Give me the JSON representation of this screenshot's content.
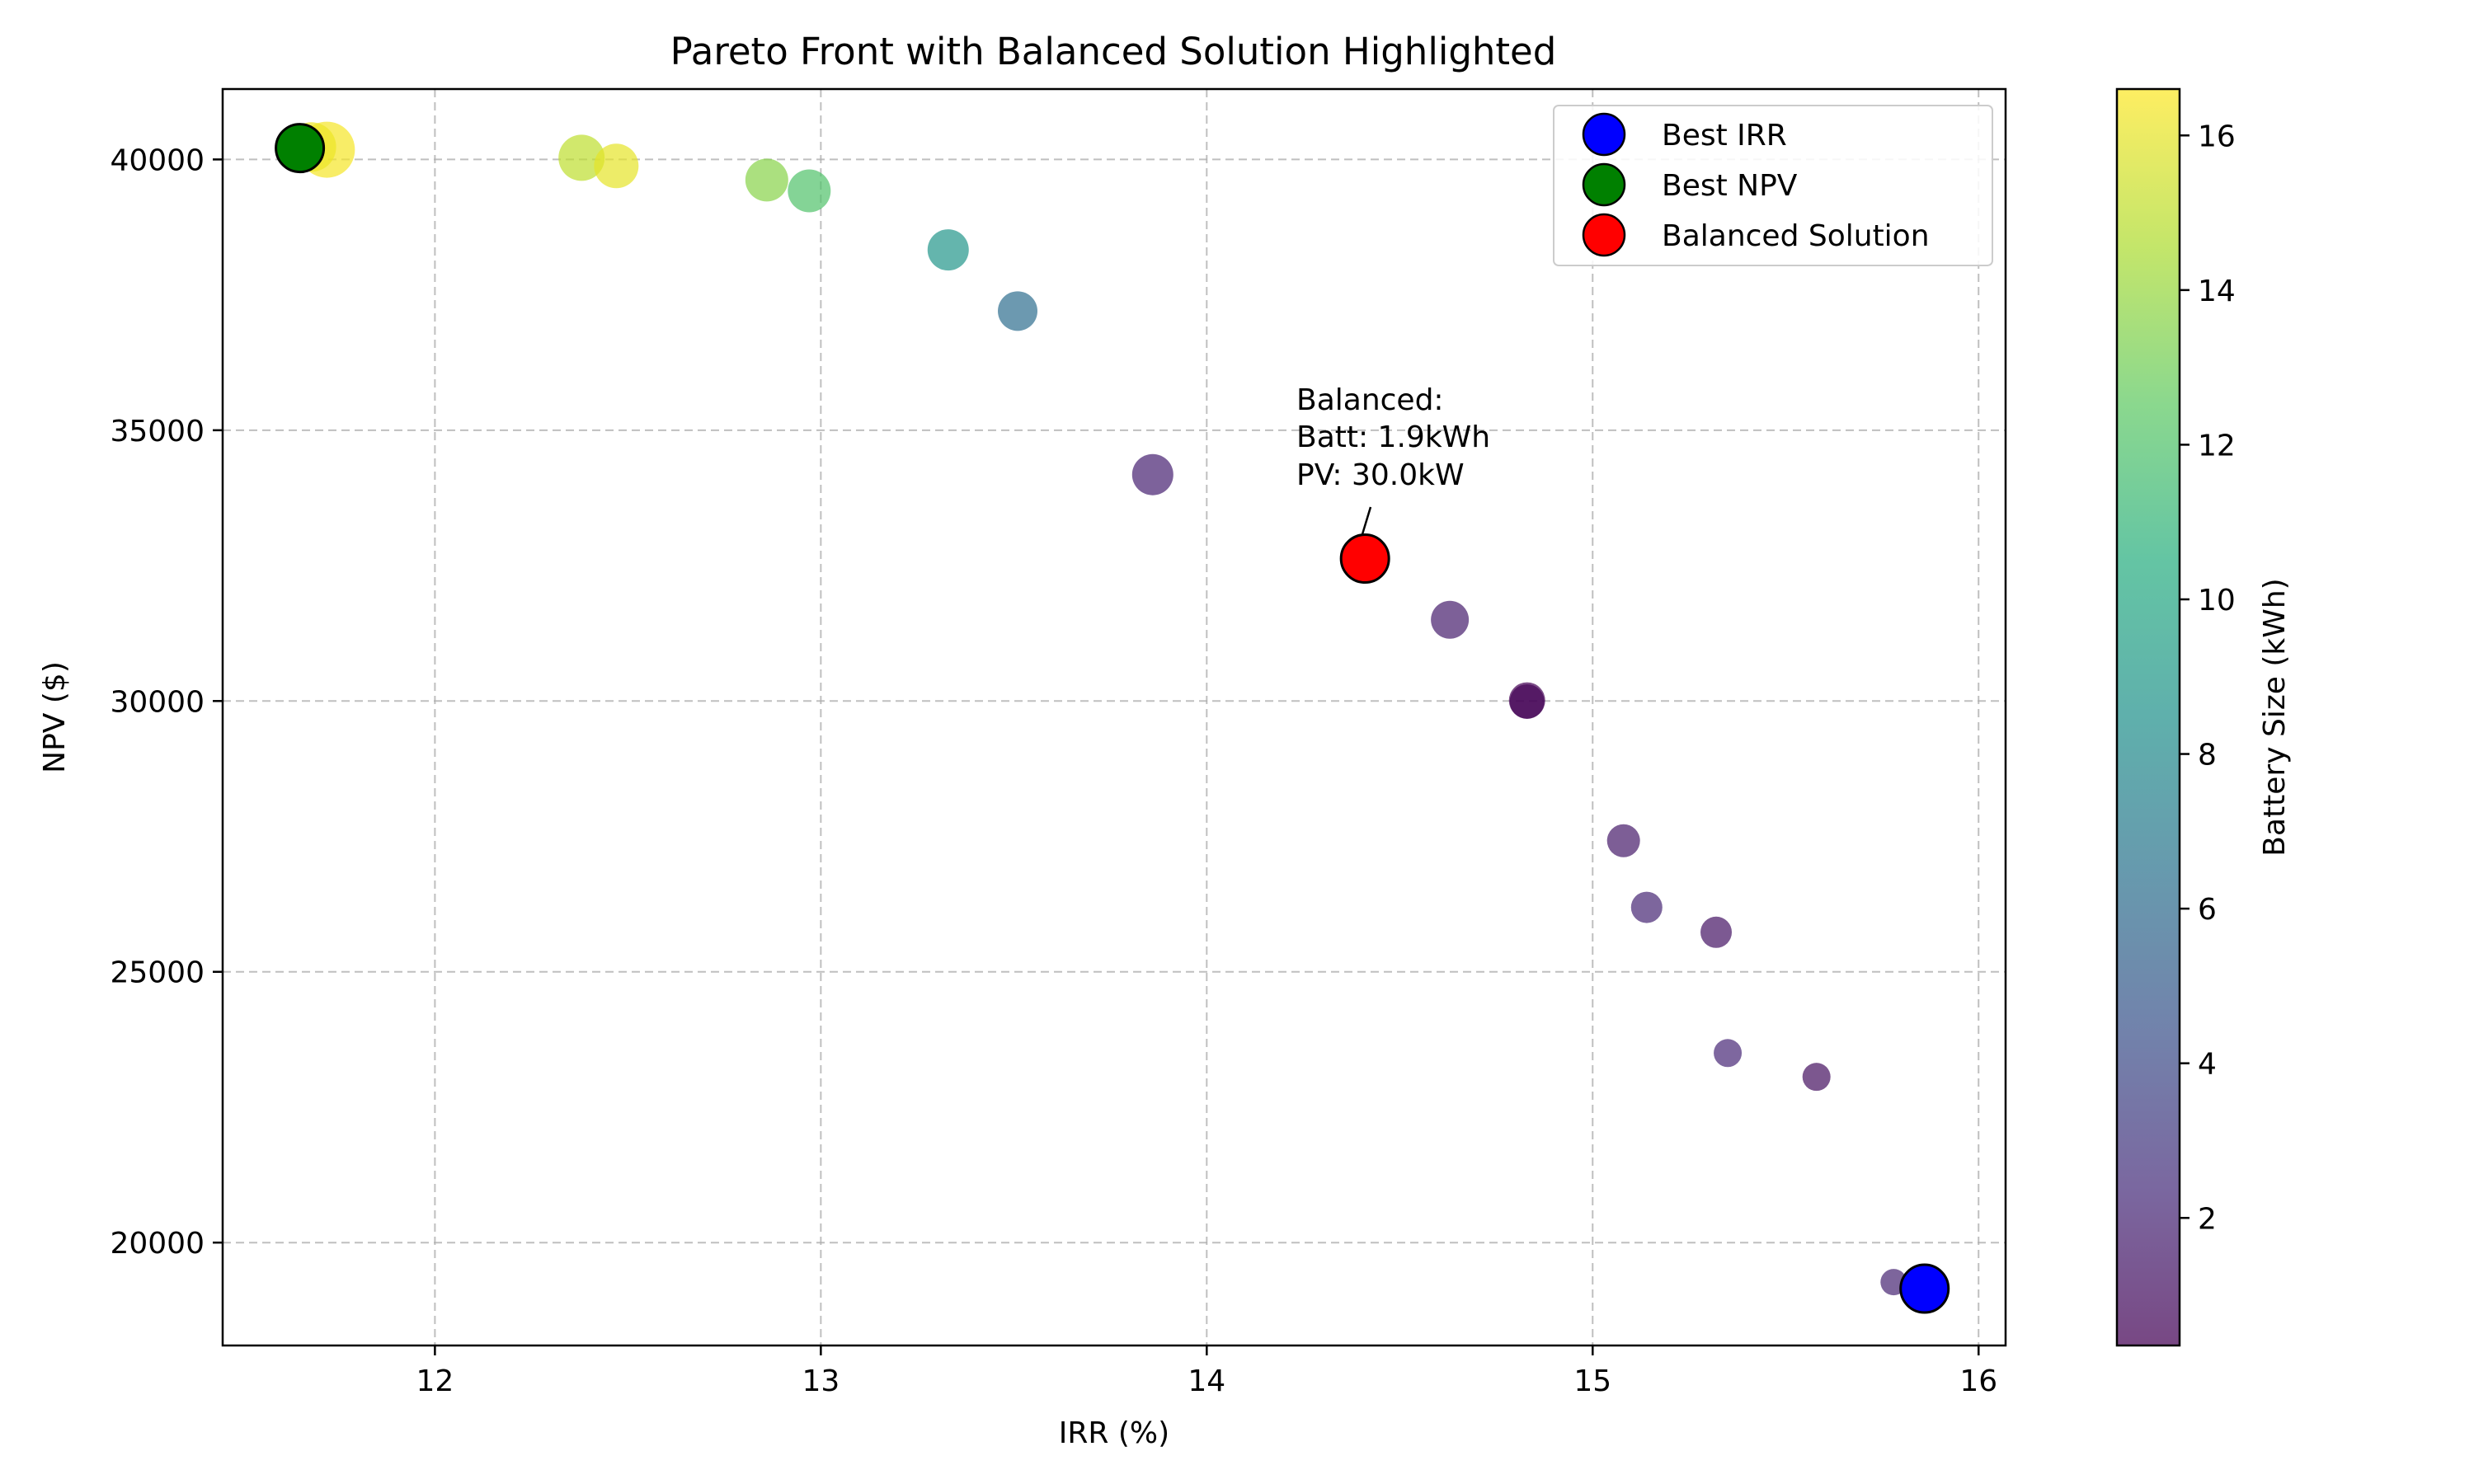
{
  "chart_data": {
    "type": "scatter",
    "title": "Pareto Front with Balanced Solution Highlighted",
    "xlabel": "IRR (%)",
    "ylabel": "NPV ($)",
    "xlim": [
      11.45,
      16.07
    ],
    "ylim": [
      18100,
      41300
    ],
    "xticks": [
      12,
      13,
      14,
      15,
      16
    ],
    "yticks": [
      20000,
      25000,
      30000,
      35000,
      40000
    ],
    "grid": true,
    "colormap": "viridis",
    "colorbar": {
      "label": "Battery Size (kWh)",
      "range": [
        0.35,
        16.6
      ],
      "ticks": [
        2,
        4,
        6,
        8,
        10,
        12,
        14,
        16
      ]
    },
    "points": [
      {
        "x": 11.72,
        "y": 40180,
        "battery": 16.4,
        "size": 34
      },
      {
        "x": 11.68,
        "y": 40230,
        "battery": 16.2,
        "size": 30
      },
      {
        "x": 12.38,
        "y": 40030,
        "battery": 15.0,
        "size": 28
      },
      {
        "x": 12.47,
        "y": 39880,
        "battery": 16.0,
        "size": 27
      },
      {
        "x": 12.86,
        "y": 39620,
        "battery": 13.6,
        "size": 26
      },
      {
        "x": 12.97,
        "y": 39420,
        "battery": 12.0,
        "size": 26
      },
      {
        "x": 13.33,
        "y": 38330,
        "battery": 8.8,
        "size": 25
      },
      {
        "x": 13.51,
        "y": 37200,
        "battery": 6.2,
        "size": 24
      },
      {
        "x": 13.86,
        "y": 34180,
        "battery": 1.8,
        "size": 25
      },
      {
        "x": 14.63,
        "y": 31500,
        "battery": 1.6,
        "size": 23
      },
      {
        "x": 14.83,
        "y": 30010,
        "battery": 0.4,
        "size": 22
      },
      {
        "x": 14.83,
        "y": 29990,
        "battery": 0.5,
        "size": 21
      },
      {
        "x": 15.08,
        "y": 27420,
        "battery": 1.5,
        "size": 20
      },
      {
        "x": 15.14,
        "y": 26190,
        "battery": 2.0,
        "size": 19
      },
      {
        "x": 15.32,
        "y": 25730,
        "battery": 1.2,
        "size": 19
      },
      {
        "x": 15.35,
        "y": 23500,
        "battery": 2.1,
        "size": 17
      },
      {
        "x": 15.58,
        "y": 23060,
        "battery": 1.0,
        "size": 17
      },
      {
        "x": 15.78,
        "y": 19270,
        "battery": 1.9,
        "size": 16
      }
    ],
    "highlights": [
      {
        "name": "Best IRR",
        "x": 15.86,
        "y": 19150,
        "color": "#0000ff"
      },
      {
        "name": "Best NPV",
        "x": 11.65,
        "y": 40210,
        "color": "#008000"
      },
      {
        "name": "Balanced Solution",
        "x": 14.41,
        "y": 32630,
        "color": "#ff0000"
      }
    ],
    "legend": {
      "placement": "top-right",
      "entries": [
        "Best IRR",
        "Best NPV",
        "Balanced Solution"
      ]
    },
    "annotation": {
      "lines": [
        "Balanced:",
        "Batt: 1.9kWh",
        "PV: 30.0kW"
      ],
      "target": {
        "x": 14.41,
        "y": 32630
      }
    }
  }
}
